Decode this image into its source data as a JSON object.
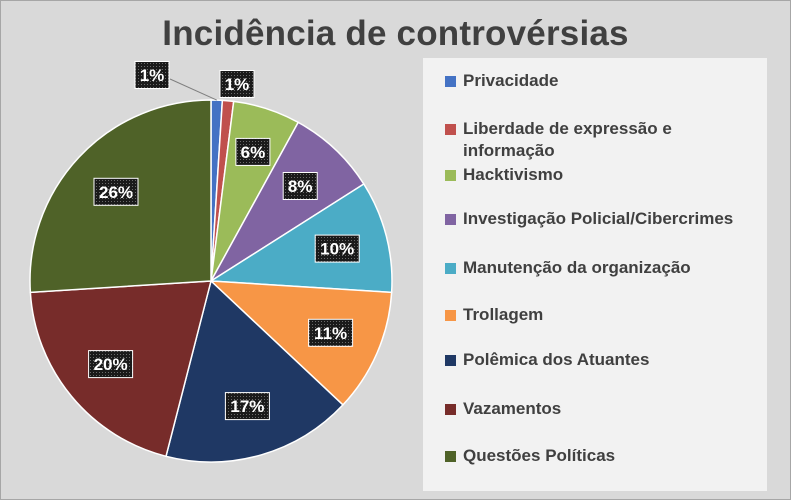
{
  "chart_data": {
    "type": "pie",
    "title": "Incidência de controvérsias",
    "legend_position": "right",
    "slices": [
      {
        "name": "Privacidade",
        "value": 1,
        "label": "1%",
        "color": "#4472c4"
      },
      {
        "name": "Liberdade de expressão e informação",
        "value": 1,
        "label": "1%",
        "color": "#c0504d"
      },
      {
        "name": "Hacktivismo",
        "value": 6,
        "label": "6%",
        "color": "#9bbb59"
      },
      {
        "name": "Investigação Policial/Cibercrimes",
        "value": 8,
        "label": "8%",
        "color": "#8064a2"
      },
      {
        "name": "Manutenção da organização",
        "value": 10,
        "label": "10%",
        "color": "#4bacc6"
      },
      {
        "name": "Trollagem",
        "value": 11,
        "label": "11%",
        "color": "#f79646"
      },
      {
        "name": "Polêmica dos Atuantes",
        "value": 17,
        "label": "17%",
        "color": "#1f3864"
      },
      {
        "name": "Vazamentos",
        "value": 20,
        "label": "20%",
        "color": "#772c2a"
      },
      {
        "name": "Questões Políticas",
        "value": 26,
        "label": "26%",
        "color": "#4f6228"
      }
    ]
  }
}
